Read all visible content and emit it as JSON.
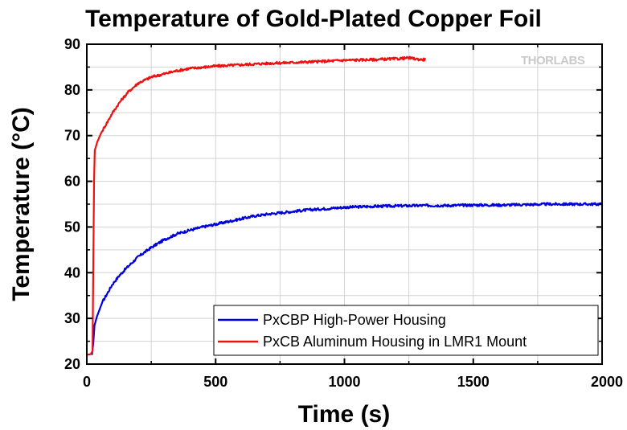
{
  "chart_data": {
    "type": "line",
    "title": "Temperature of Gold-Plated Copper Foil",
    "xlabel": "Time (s)",
    "ylabel": "Temperature (°C)",
    "xlim": [
      0,
      2000
    ],
    "ylim": [
      20,
      90
    ],
    "xticks": [
      0,
      500,
      1000,
      1500,
      2000
    ],
    "yticks": [
      20,
      30,
      40,
      50,
      60,
      70,
      80,
      90
    ],
    "grid": true,
    "legend_position": "bottom-right",
    "logo": "THORLABS",
    "series": [
      {
        "name": "PxCBP High-Power Housing",
        "color": "#0000dd",
        "points": [
          [
            20,
            22.0
          ],
          [
            25,
            24.5
          ],
          [
            30,
            28.5
          ],
          [
            40,
            30.5
          ],
          [
            60,
            33.5
          ],
          [
            80,
            35.5
          ],
          [
            100,
            37.5
          ],
          [
            125,
            39.3
          ],
          [
            150,
            40.8
          ],
          [
            200,
            43.5
          ],
          [
            250,
            45.5
          ],
          [
            300,
            47.2
          ],
          [
            350,
            48.5
          ],
          [
            400,
            49.3
          ],
          [
            450,
            50.0
          ],
          [
            500,
            50.6
          ],
          [
            550,
            51.2
          ],
          [
            600,
            51.8
          ],
          [
            650,
            52.4
          ],
          [
            700,
            52.8
          ],
          [
            750,
            53.1
          ],
          [
            800,
            53.4
          ],
          [
            850,
            53.7
          ],
          [
            900,
            53.9
          ],
          [
            950,
            54.1
          ],
          [
            1000,
            54.3
          ],
          [
            1100,
            54.5
          ],
          [
            1200,
            54.6
          ],
          [
            1300,
            54.7
          ],
          [
            1400,
            54.7
          ],
          [
            1500,
            54.8
          ],
          [
            1600,
            54.8
          ],
          [
            1700,
            54.9
          ],
          [
            1800,
            55.0
          ],
          [
            1900,
            55.0
          ],
          [
            2000,
            55.0
          ]
        ]
      },
      {
        "name": "PxCB Aluminum Housing in LMR1 Mount",
        "color": "#ee1111",
        "points": [
          [
            0,
            22.0
          ],
          [
            15,
            22.2
          ],
          [
            22,
            22.8
          ],
          [
            25,
            40.0
          ],
          [
            28,
            60.0
          ],
          [
            31,
            66.8
          ],
          [
            40,
            68.5
          ],
          [
            55,
            70.5
          ],
          [
            80,
            73.0
          ],
          [
            100,
            75.0
          ],
          [
            130,
            77.5
          ],
          [
            160,
            79.5
          ],
          [
            200,
            81.5
          ],
          [
            250,
            82.8
          ],
          [
            300,
            83.5
          ],
          [
            350,
            84.2
          ],
          [
            400,
            84.7
          ],
          [
            500,
            85.2
          ],
          [
            600,
            85.5
          ],
          [
            700,
            85.8
          ],
          [
            800,
            86.0
          ],
          [
            900,
            86.2
          ],
          [
            1000,
            86.5
          ],
          [
            1100,
            86.6
          ],
          [
            1200,
            86.8
          ],
          [
            1250,
            87.0
          ],
          [
            1300,
            86.6
          ],
          [
            1315,
            86.7
          ]
        ]
      }
    ]
  }
}
